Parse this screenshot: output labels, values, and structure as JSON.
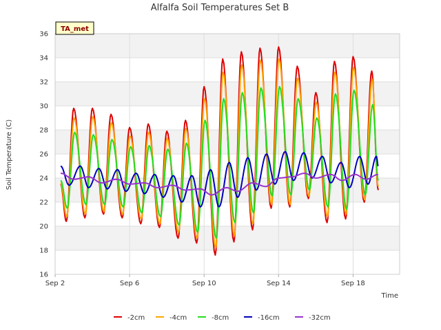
{
  "chart_data": {
    "type": "line",
    "title": "Alfalfa Soil Temperatures Set B",
    "xlabel": "Time",
    "ylabel": "Soil Temperature (C)",
    "badge": "TA_met",
    "xlim": [
      2.0,
      20.5
    ],
    "ylim": [
      16,
      36
    ],
    "xticks": [
      {
        "x": 2,
        "label": "Sep 2"
      },
      {
        "x": 6,
        "label": "Sep 6"
      },
      {
        "x": 10,
        "label": "Sep 10"
      },
      {
        "x": 14,
        "label": "Sep 14"
      },
      {
        "x": 18,
        "label": "Sep 18"
      }
    ],
    "yticks": [
      16,
      18,
      20,
      22,
      24,
      26,
      28,
      30,
      32,
      34,
      36
    ],
    "grid": true,
    "legend_position": "bottom",
    "series": [
      {
        "name": "-2cm",
        "color": "#dd0000",
        "points": [
          [
            2.3,
            23.5
          ],
          [
            2.6,
            20.4
          ],
          [
            3.0,
            29.8
          ],
          [
            3.6,
            20.7
          ],
          [
            4.0,
            29.8
          ],
          [
            4.6,
            21.0
          ],
          [
            5.0,
            29.3
          ],
          [
            5.6,
            20.7
          ],
          [
            6.0,
            28.2
          ],
          [
            6.6,
            20.2
          ],
          [
            7.0,
            28.5
          ],
          [
            7.6,
            19.9
          ],
          [
            8.0,
            27.9
          ],
          [
            8.6,
            19.0
          ],
          [
            9.0,
            28.8
          ],
          [
            9.6,
            18.6
          ],
          [
            10.0,
            31.6
          ],
          [
            10.6,
            17.6
          ],
          [
            11.0,
            33.9
          ],
          [
            11.6,
            18.7
          ],
          [
            12.0,
            34.5
          ],
          [
            12.6,
            19.7
          ],
          [
            13.0,
            34.8
          ],
          [
            13.6,
            21.5
          ],
          [
            14.0,
            34.9
          ],
          [
            14.6,
            21.6
          ],
          [
            15.0,
            33.3
          ],
          [
            15.6,
            22.3
          ],
          [
            16.0,
            31.1
          ],
          [
            16.6,
            20.3
          ],
          [
            17.0,
            33.7
          ],
          [
            17.6,
            20.6
          ],
          [
            18.0,
            34.1
          ],
          [
            18.6,
            22.0
          ],
          [
            19.0,
            32.9
          ],
          [
            19.35,
            23.0
          ]
        ]
      },
      {
        "name": "-4cm",
        "color": "#ffa500",
        "points": [
          [
            2.3,
            23.6
          ],
          [
            2.62,
            20.8
          ],
          [
            3.02,
            29.0
          ],
          [
            3.62,
            21.0
          ],
          [
            4.02,
            29.1
          ],
          [
            4.62,
            21.2
          ],
          [
            5.02,
            28.6
          ],
          [
            5.62,
            21.0
          ],
          [
            6.02,
            27.5
          ],
          [
            6.62,
            20.6
          ],
          [
            7.02,
            27.8
          ],
          [
            7.62,
            20.2
          ],
          [
            8.02,
            27.3
          ],
          [
            8.62,
            19.5
          ],
          [
            9.02,
            28.1
          ],
          [
            9.62,
            19.0
          ],
          [
            10.02,
            30.6
          ],
          [
            10.62,
            18.2
          ],
          [
            11.02,
            32.8
          ],
          [
            11.62,
            19.2
          ],
          [
            12.02,
            33.4
          ],
          [
            12.62,
            20.2
          ],
          [
            13.02,
            33.8
          ],
          [
            13.62,
            21.8
          ],
          [
            14.02,
            33.9
          ],
          [
            14.62,
            21.8
          ],
          [
            15.02,
            32.3
          ],
          [
            15.62,
            22.5
          ],
          [
            16.02,
            30.3
          ],
          [
            16.62,
            20.8
          ],
          [
            17.02,
            32.8
          ],
          [
            17.62,
            21.0
          ],
          [
            18.02,
            33.2
          ],
          [
            18.62,
            22.2
          ],
          [
            19.02,
            32.2
          ],
          [
            19.35,
            23.3
          ]
        ]
      },
      {
        "name": "-8cm",
        "color": "#22dd22",
        "points": [
          [
            2.3,
            23.8
          ],
          [
            2.65,
            21.5
          ],
          [
            3.05,
            27.8
          ],
          [
            3.65,
            21.8
          ],
          [
            4.05,
            27.6
          ],
          [
            4.65,
            21.8
          ],
          [
            5.05,
            27.2
          ],
          [
            5.65,
            21.6
          ],
          [
            6.05,
            26.6
          ],
          [
            6.65,
            21.1
          ],
          [
            7.05,
            26.7
          ],
          [
            7.65,
            20.8
          ],
          [
            8.05,
            26.4
          ],
          [
            8.65,
            20.1
          ],
          [
            9.05,
            26.9
          ],
          [
            9.65,
            19.5
          ],
          [
            10.05,
            28.8
          ],
          [
            10.65,
            19.0
          ],
          [
            11.05,
            30.6
          ],
          [
            11.65,
            20.3
          ],
          [
            12.05,
            31.1
          ],
          [
            12.65,
            21.1
          ],
          [
            13.05,
            31.5
          ],
          [
            13.65,
            22.5
          ],
          [
            14.05,
            31.6
          ],
          [
            14.65,
            22.6
          ],
          [
            15.05,
            30.6
          ],
          [
            15.65,
            23.0
          ],
          [
            16.05,
            29.0
          ],
          [
            16.65,
            21.6
          ],
          [
            17.05,
            31.0
          ],
          [
            17.65,
            21.4
          ],
          [
            18.05,
            31.3
          ],
          [
            18.65,
            22.6
          ],
          [
            19.05,
            30.1
          ],
          [
            19.35,
            23.8
          ]
        ]
      },
      {
        "name": "-16cm",
        "color": "#0000bb",
        "points": [
          [
            2.3,
            25.0
          ],
          [
            2.75,
            23.4
          ],
          [
            3.35,
            25.0
          ],
          [
            3.8,
            23.2
          ],
          [
            4.35,
            24.8
          ],
          [
            4.8,
            23.1
          ],
          [
            5.35,
            24.7
          ],
          [
            5.8,
            22.9
          ],
          [
            6.35,
            24.4
          ],
          [
            6.8,
            22.7
          ],
          [
            7.35,
            24.3
          ],
          [
            7.8,
            22.4
          ],
          [
            8.35,
            24.2
          ],
          [
            8.8,
            22.0
          ],
          [
            9.35,
            24.2
          ],
          [
            9.8,
            21.6
          ],
          [
            10.35,
            24.7
          ],
          [
            10.8,
            21.6
          ],
          [
            11.35,
            25.3
          ],
          [
            11.8,
            22.4
          ],
          [
            12.35,
            25.7
          ],
          [
            12.8,
            23.0
          ],
          [
            13.35,
            26.0
          ],
          [
            13.8,
            23.5
          ],
          [
            14.35,
            26.2
          ],
          [
            14.8,
            23.8
          ],
          [
            15.35,
            26.1
          ],
          [
            15.8,
            24.0
          ],
          [
            16.35,
            25.8
          ],
          [
            16.8,
            23.6
          ],
          [
            17.35,
            25.3
          ],
          [
            17.8,
            23.2
          ],
          [
            18.35,
            25.8
          ],
          [
            18.8,
            23.5
          ],
          [
            19.25,
            25.8
          ],
          [
            19.35,
            25.0
          ]
        ]
      },
      {
        "name": "-32cm",
        "color": "#9933cc",
        "points": [
          [
            2.3,
            24.4
          ],
          [
            3.0,
            23.9
          ],
          [
            3.8,
            24.1
          ],
          [
            4.5,
            23.6
          ],
          [
            5.3,
            23.9
          ],
          [
            6.0,
            23.5
          ],
          [
            6.8,
            23.6
          ],
          [
            7.5,
            23.2
          ],
          [
            8.3,
            23.4
          ],
          [
            9.0,
            23.0
          ],
          [
            9.8,
            23.1
          ],
          [
            10.4,
            22.6
          ],
          [
            11.2,
            23.2
          ],
          [
            11.8,
            22.9
          ],
          [
            12.6,
            23.6
          ],
          [
            13.3,
            23.3
          ],
          [
            14.0,
            24.0
          ],
          [
            14.7,
            24.1
          ],
          [
            15.4,
            24.4
          ],
          [
            16.0,
            24.0
          ],
          [
            16.8,
            24.3
          ],
          [
            17.4,
            23.8
          ],
          [
            18.1,
            24.3
          ],
          [
            18.7,
            23.9
          ],
          [
            19.35,
            24.3
          ]
        ]
      }
    ]
  }
}
